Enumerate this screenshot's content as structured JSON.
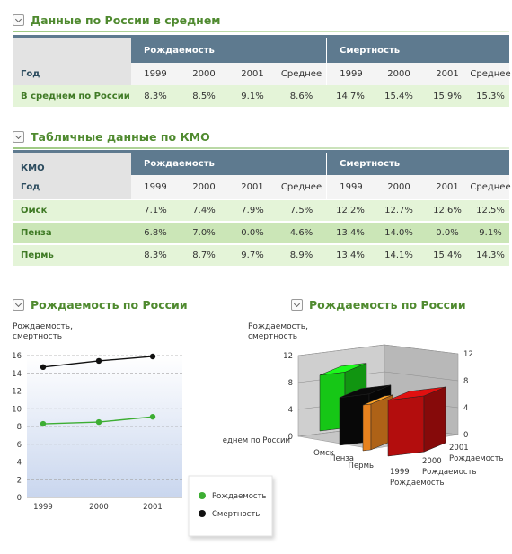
{
  "section1": {
    "title": "Данные по России в  среднем"
  },
  "section2": {
    "title": "Табличные данные по КМО"
  },
  "table1": {
    "group_headers": [
      "Рождаемость",
      "Смертность"
    ],
    "row_header_label": "Год",
    "years": [
      "1999",
      "2000",
      "2001",
      "Среднее",
      "1999",
      "2000",
      "2001",
      "Среднее"
    ],
    "rows": [
      {
        "label": "В среднем по России",
        "values": [
          "8.3%",
          "8.5%",
          "9.1%",
          "8.6%",
          "14.7%",
          "15.4%",
          "15.9%",
          "15.3%"
        ]
      }
    ]
  },
  "table2": {
    "group_headers": [
      "Рождаемость",
      "Смертность"
    ],
    "kmo_label": "КМО",
    "row_header_label": "Год",
    "years": [
      "1999",
      "2000",
      "2001",
      "Среднее",
      "1999",
      "2000",
      "2001",
      "Среднее"
    ],
    "rows": [
      {
        "label": "Омск",
        "values": [
          "7.1%",
          "7.4%",
          "7.9%",
          "7.5%",
          "12.2%",
          "12.7%",
          "12.6%",
          "12.5%"
        ]
      },
      {
        "label": "Пенза",
        "values": [
          "6.8%",
          "7.0%",
          "0.0%",
          "4.6%",
          "13.4%",
          "14.0%",
          "0.0%",
          "9.1%"
        ]
      },
      {
        "label": "Пермь",
        "values": [
          "8.3%",
          "8.7%",
          "9.7%",
          "8.9%",
          "13.4%",
          "14.1%",
          "15.4%",
          "14.3%"
        ]
      }
    ]
  },
  "chart_data": [
    {
      "type": "line",
      "title": "Рождаемость по России",
      "ylabel": "Рождаемость, смертность",
      "ylabel_lines": [
        "Рождаемость,",
        "смертность"
      ],
      "x": [
        "1999",
        "2000",
        "2001"
      ],
      "ylim": [
        0,
        16
      ],
      "yticks": [
        0,
        2,
        4,
        6,
        8,
        10,
        12,
        14,
        16
      ],
      "grid": true,
      "legend": "bottom-right",
      "series": [
        {
          "name": "Рождаемость",
          "values": [
            8.3,
            8.5,
            9.1
          ],
          "color": "#3dae33"
        },
        {
          "name": "Смертность",
          "values": [
            14.7,
            15.4,
            15.9
          ],
          "color": "#111111"
        }
      ]
    },
    {
      "type": "bar",
      "title": "Рождаемость по России",
      "ylabel": "Рождаемость, смертность",
      "ylabel_lines": [
        "Рождаемость,",
        "смертность"
      ],
      "zlim": [
        0,
        12
      ],
      "zticks": [
        0,
        4,
        8,
        12
      ],
      "categories": [
        "В среднем по России",
        "Омск",
        "Пенза",
        "Пермь"
      ],
      "x_axis_labels": [
        "1999",
        "Рождаемость",
        "2000",
        "Рождаемость",
        "2001",
        "Рождаемость"
      ],
      "bars": [
        {
          "category": "В среднем по России",
          "value": 8.3,
          "color": "#16c716"
        },
        {
          "category": "Омск",
          "value": 7.1,
          "color": "#080808"
        },
        {
          "category": "Пенза",
          "value": 6.8,
          "color": "#e8821e"
        },
        {
          "category": "Пермь",
          "value": 8.3,
          "color": "#b30d0d"
        }
      ]
    }
  ]
}
